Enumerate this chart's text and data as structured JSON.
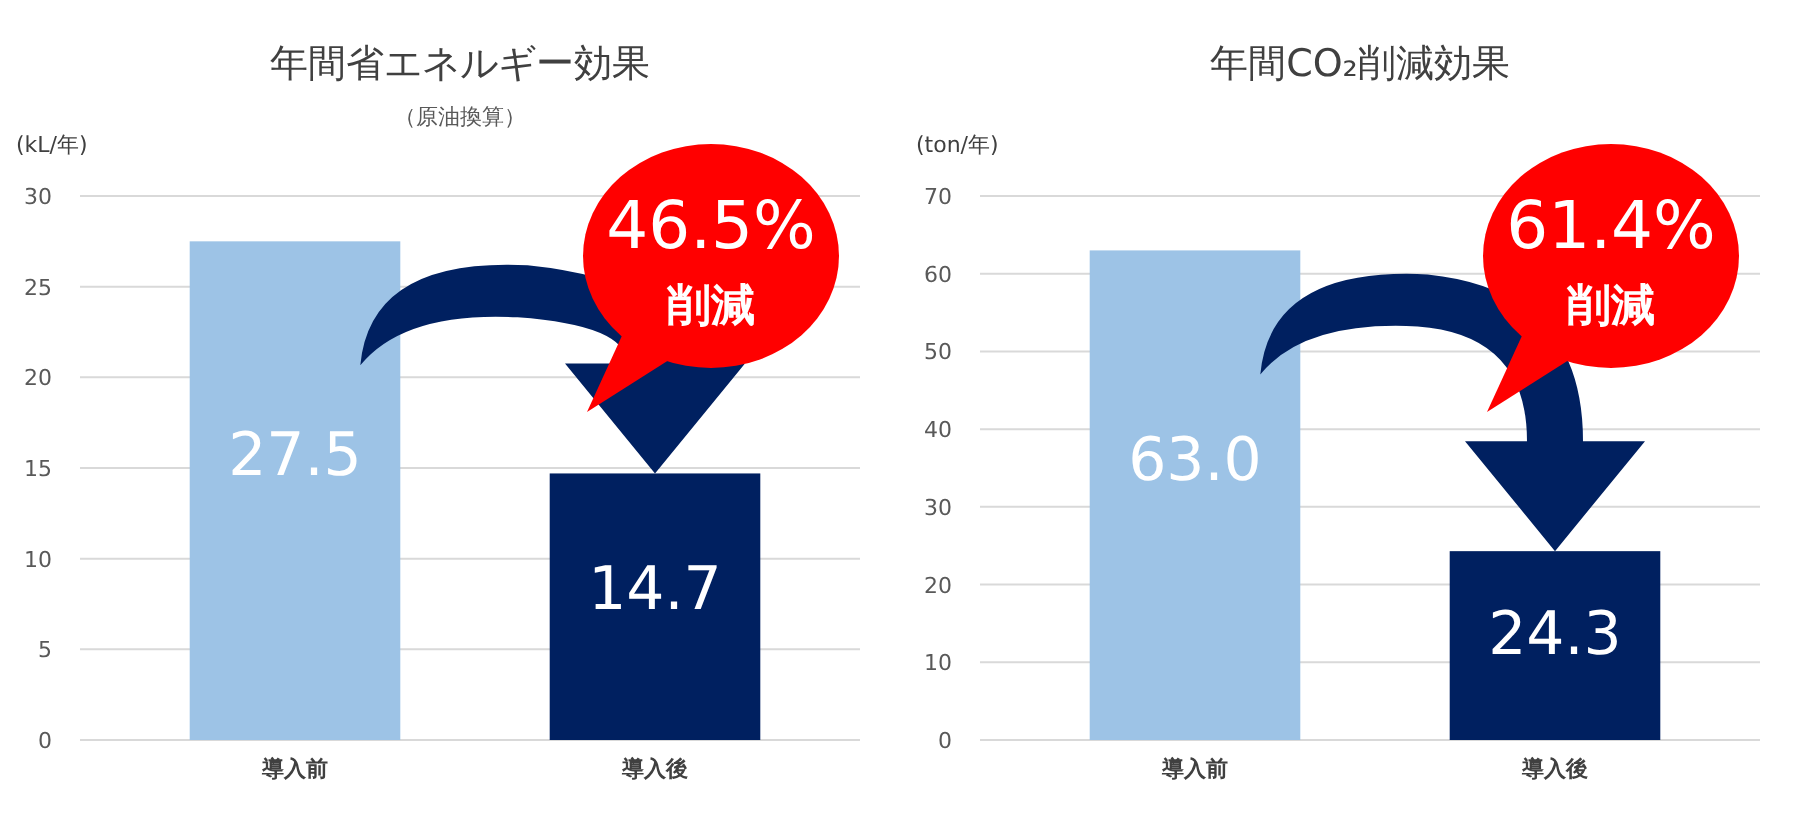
{
  "chart_data": [
    {
      "type": "bar",
      "title": "年間省エネルギー効果",
      "subtitle": "（原油換算）",
      "ylabel": "(kL/年)",
      "categories": [
        "導入前",
        "導入後"
      ],
      "values": [
        27.5,
        14.7
      ],
      "colors": [
        "#9dc3e6",
        "#002060"
      ],
      "value_labels": [
        "27.5",
        "14.7"
      ],
      "ylim": [
        0,
        30
      ],
      "yticks": [
        0,
        5,
        10,
        15,
        20,
        25,
        30
      ],
      "grid": "y",
      "annotations": [
        "46.5%",
        "削減"
      ]
    },
    {
      "type": "bar",
      "title": "年間CO₂削減効果",
      "ylabel": "(ton/年)",
      "categories": [
        "導入前",
        "導入後"
      ],
      "values": [
        63.0,
        24.3
      ],
      "colors": [
        "#9dc3e6",
        "#002060"
      ],
      "value_labels": [
        "63.0",
        "24.3"
      ],
      "ylim": [
        0,
        70
      ],
      "yticks": [
        0,
        10,
        20,
        30,
        40,
        50,
        60,
        70
      ],
      "grid": "y",
      "annotations": [
        "61.4%",
        "削減"
      ]
    }
  ]
}
